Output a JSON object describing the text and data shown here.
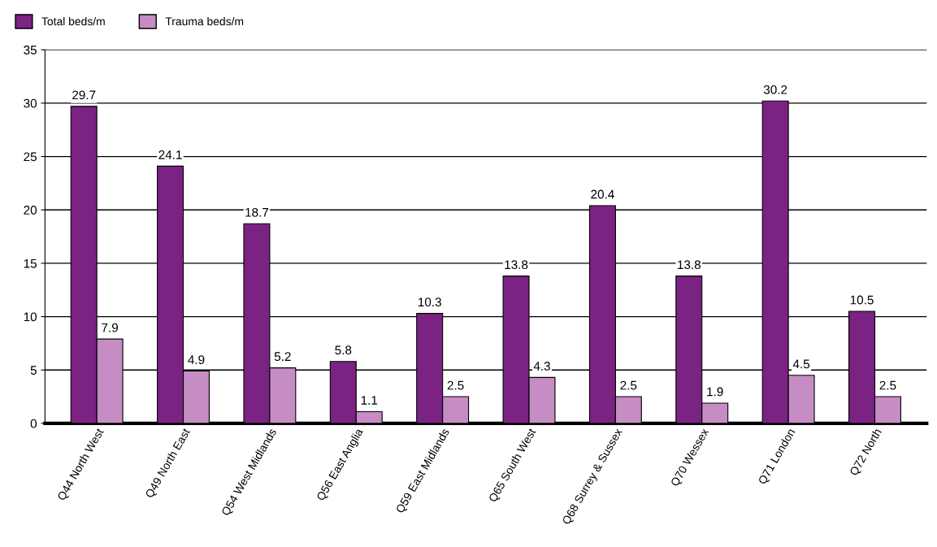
{
  "chart_data": {
    "type": "bar",
    "categories": [
      "Q44 North West",
      "Q49 North East",
      "Q54 West Midlands",
      "Q56 East Anglia",
      "Q59 East Midlands",
      "Q65 South West",
      "Q68 Surrey & Sussex",
      "Q70 Wessex",
      "Q71 London",
      "Q72 North"
    ],
    "series": [
      {
        "name": "Total beds/m",
        "color": "#7a2382",
        "values": [
          29.7,
          24.1,
          18.7,
          5.8,
          10.3,
          13.8,
          20.4,
          13.8,
          30.2,
          10.5
        ]
      },
      {
        "name": "Trauma beds/m",
        "color": "#c68cc4",
        "values": [
          7.9,
          4.9,
          5.2,
          1.1,
          2.5,
          4.3,
          2.5,
          1.9,
          4.5,
          2.5
        ]
      }
    ],
    "ylim": [
      0,
      35
    ],
    "yticks": [
      0,
      5,
      10,
      15,
      20,
      25,
      30,
      35
    ],
    "grid": "y",
    "legend": "top left",
    "data_labels": true
  }
}
